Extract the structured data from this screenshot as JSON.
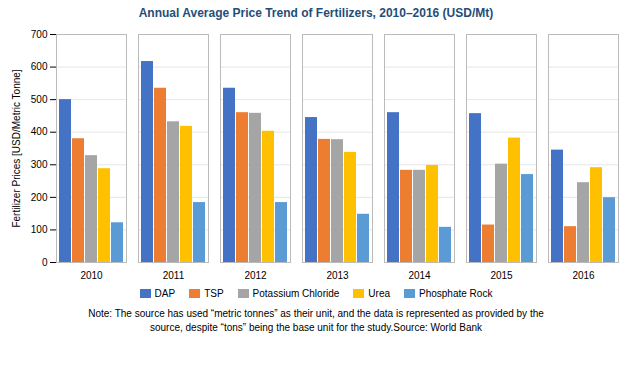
{
  "chart_data": {
    "type": "bar",
    "title": "Annual Average Price Trend of Fertilizers, 2010–2016 (USD/Mt)",
    "y_label": "Fertilizer Prices [USD/Metric Tonne]",
    "categories": [
      "2010",
      "2011",
      "2012",
      "2013",
      "2014",
      "2015",
      "2016"
    ],
    "series": [
      {
        "name": "DAP",
        "color": "#4472C4",
        "values": [
          500,
          617,
          535,
          445,
          460,
          457,
          345
        ]
      },
      {
        "name": "TSP",
        "color": "#ED7D31",
        "values": [
          380,
          535,
          460,
          378,
          283,
          115,
          110
        ]
      },
      {
        "name": "Potassium Chloride",
        "color": "#A5A5A5",
        "values": [
          328,
          432,
          458,
          377,
          283,
          302,
          245
        ]
      },
      {
        "name": "Urea",
        "color": "#FFC000",
        "values": [
          288,
          418,
          403,
          338,
          298,
          382,
          291
        ]
      },
      {
        "name": "Phosphate Rock",
        "color": "#5B9BD5",
        "values": [
          122,
          184,
          184,
          148,
          108,
          270,
          199
        ]
      }
    ],
    "ylim": [
      0,
      700
    ],
    "yticks": [
      0,
      100,
      200,
      300,
      400,
      500,
      600,
      700
    ],
    "grid": true,
    "legend": "bottom",
    "annotations": [
      "Note: The source has used “metric tonnes” as their unit, and the data is represented as provided by the",
      "source, despite “tons” being the base unit for the study.Source: World Bank"
    ]
  }
}
